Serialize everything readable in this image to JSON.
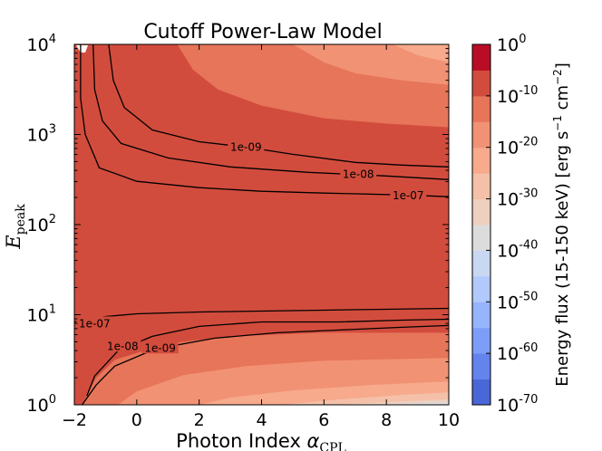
{
  "chart_data": {
    "type": "contourf",
    "title": "Cutoff Power-Law Model",
    "xlabel": "Photon Index α_CPL",
    "xlabel_main": "Photon Index ",
    "xlabel_symbol": "α",
    "xlabel_sub": "CPL",
    "ylabel": "E_peak",
    "ylabel_symbol": "E",
    "ylabel_sub": "peak",
    "xlim": [
      -2,
      10
    ],
    "ylim_log10": [
      0,
      4
    ],
    "yscale": "log",
    "x_ticks": [
      {
        "value": -2,
        "label": "−2"
      },
      {
        "value": 0,
        "label": "0"
      },
      {
        "value": 2,
        "label": "2"
      },
      {
        "value": 4,
        "label": "4"
      },
      {
        "value": 6,
        "label": "6"
      },
      {
        "value": 8,
        "label": "8"
      },
      {
        "value": 10,
        "label": "10"
      }
    ],
    "y_ticks": [
      {
        "value": 1,
        "exp": 0,
        "base": "10",
        "sup": "0"
      },
      {
        "value": 10,
        "exp": 1,
        "base": "10",
        "sup": "1"
      },
      {
        "value": 100,
        "exp": 2,
        "base": "10",
        "sup": "2"
      },
      {
        "value": 1000,
        "exp": 3,
        "base": "10",
        "sup": "3"
      },
      {
        "value": 10000,
        "exp": 4,
        "base": "10",
        "sup": "4"
      }
    ],
    "colorbar": {
      "label": "Energy flux (15-150 keV) [erg s⁻¹ cm⁻²]",
      "label_main": "Energy flux (15-150 keV) [erg s",
      "label_sup1": "−1",
      "label_mid": " cm",
      "label_sup2": "−2",
      "label_end": "]",
      "range_log10": [
        -70,
        0
      ],
      "ticks": [
        {
          "exp": 0,
          "base": "10",
          "sup": "0"
        },
        {
          "exp": -10,
          "base": "10",
          "sup": "-10"
        },
        {
          "exp": -20,
          "base": "10",
          "sup": "-20"
        },
        {
          "exp": -30,
          "base": "10",
          "sup": "-30"
        },
        {
          "exp": -40,
          "base": "10",
          "sup": "-40"
        },
        {
          "exp": -50,
          "base": "10",
          "sup": "-50"
        },
        {
          "exp": -60,
          "base": "10",
          "sup": "-60"
        },
        {
          "exp": -70,
          "base": "10",
          "sup": "-70"
        }
      ],
      "levels": [
        {
          "from": -70,
          "to": -65,
          "color": "#4a67d7"
        },
        {
          "from": -65,
          "to": -60,
          "color": "#6383ed"
        },
        {
          "from": -60,
          "to": -55,
          "color": "#7c9df8"
        },
        {
          "from": -55,
          "to": -50,
          "color": "#97b5fe"
        },
        {
          "from": -50,
          "to": -45,
          "color": "#b1c9fd"
        },
        {
          "from": -45,
          "to": -40,
          "color": "#c8d7f2"
        },
        {
          "from": -40,
          "to": -35,
          "color": "#dddcdc"
        },
        {
          "from": -35,
          "to": -30,
          "color": "#eed0c0"
        },
        {
          "from": -30,
          "to": -25,
          "color": "#f5c0a8"
        },
        {
          "from": -25,
          "to": -20,
          "color": "#f7aa8c"
        },
        {
          "from": -20,
          "to": -15,
          "color": "#f29274"
        },
        {
          "from": -15,
          "to": -10,
          "color": "#e77559"
        },
        {
          "from": -10,
          "to": -5,
          "color": "#d24c3d"
        },
        {
          "from": -5,
          "to": 0,
          "color": "#b90d26"
        }
      ]
    },
    "regions_upper": [
      {
        "level_min": -15,
        "boundary": [
          [
            1.3,
            4.0
          ],
          [
            1.8,
            3.72
          ],
          [
            2.6,
            3.5
          ],
          [
            4.0,
            3.32
          ],
          [
            6.0,
            3.18
          ],
          [
            8.0,
            3.12
          ],
          [
            10.0,
            3.08
          ]
        ]
      },
      {
        "level_min": -20,
        "boundary": [
          [
            5.0,
            4.0
          ],
          [
            6.0,
            3.8
          ],
          [
            7.0,
            3.68
          ],
          [
            8.5,
            3.6
          ],
          [
            10.0,
            3.55
          ]
        ]
      },
      {
        "level_min": -25,
        "boundary": [
          [
            8.2,
            4.0
          ],
          [
            9.0,
            3.88
          ],
          [
            10.0,
            3.8
          ]
        ]
      }
    ],
    "regions_lower": [
      {
        "level_min": -15,
        "boundary": [
          [
            -1.75,
            0.0
          ],
          [
            -1.3,
            0.3
          ],
          [
            -0.7,
            0.5
          ],
          [
            1.0,
            0.68
          ],
          [
            3.0,
            0.76
          ],
          [
            6.0,
            0.8
          ],
          [
            10.0,
            0.8
          ]
        ]
      },
      {
        "level_min": -20,
        "boundary": [
          [
            -0.6,
            0.0
          ],
          [
            0.0,
            0.15
          ],
          [
            1.5,
            0.33
          ],
          [
            3.5,
            0.43
          ],
          [
            6.0,
            0.49
          ],
          [
            10.0,
            0.52
          ]
        ]
      },
      {
        "level_min": -25,
        "boundary": [
          [
            2.0,
            0.0
          ],
          [
            3.0,
            0.08
          ],
          [
            5.0,
            0.16
          ],
          [
            7.5,
            0.22
          ],
          [
            10.0,
            0.26
          ]
        ]
      },
      {
        "level_min": -30,
        "boundary": [
          [
            4.6,
            0.0
          ],
          [
            6.5,
            0.06
          ],
          [
            8.5,
            0.11
          ],
          [
            10.0,
            0.14
          ]
        ]
      },
      {
        "level_min": -35,
        "boundary": [
          [
            6.3,
            0.0
          ],
          [
            8.0,
            0.03
          ],
          [
            10.0,
            0.06
          ]
        ]
      },
      {
        "level_min": -40,
        "boundary": [
          [
            7.8,
            0.0
          ],
          [
            9.0,
            0.02
          ],
          [
            10.0,
            0.03
          ]
        ]
      }
    ],
    "contours": [
      {
        "label": "1e-09",
        "branch": "upper",
        "points": [
          [
            -0.9,
            4.0
          ],
          [
            -0.75,
            3.6
          ],
          [
            -0.4,
            3.3
          ],
          [
            0.5,
            3.05
          ],
          [
            2.0,
            2.92
          ],
          [
            3.5,
            2.86
          ],
          [
            5.0,
            2.78
          ],
          [
            7.0,
            2.69
          ],
          [
            8.5,
            2.66
          ],
          [
            10.0,
            2.64
          ]
        ],
        "label_at": [
          3.5,
          2.86
        ]
      },
      {
        "label": "1e-08",
        "branch": "upper",
        "points": [
          [
            -1.4,
            4.0
          ],
          [
            -1.35,
            3.5
          ],
          [
            -1.1,
            3.15
          ],
          [
            -0.5,
            2.9
          ],
          [
            1.0,
            2.74
          ],
          [
            3.0,
            2.64
          ],
          [
            5.5,
            2.58
          ],
          [
            8.0,
            2.54
          ],
          [
            10.0,
            2.5
          ]
        ],
        "label_at": [
          7.1,
          2.56
        ]
      },
      {
        "label": "1e-07",
        "branch": "upper",
        "points": [
          [
            -1.8,
            4.0
          ],
          [
            -1.8,
            3.4
          ],
          [
            -1.65,
            3.0
          ],
          [
            -1.2,
            2.63
          ],
          [
            0.0,
            2.48
          ],
          [
            2.0,
            2.41
          ],
          [
            4.0,
            2.37
          ],
          [
            6.0,
            2.35
          ],
          [
            8.5,
            2.33
          ],
          [
            10.0,
            2.31
          ]
        ],
        "label_at": [
          8.7,
          2.32
        ]
      },
      {
        "label": "1e-07",
        "branch": "lower",
        "points": [
          [
            -2.0,
            0.92
          ],
          [
            -1.0,
            0.98
          ],
          [
            0.0,
            1.01
          ],
          [
            2.0,
            1.03
          ],
          [
            4.0,
            1.04
          ],
          [
            6.0,
            1.05
          ],
          [
            8.0,
            1.06
          ],
          [
            10.0,
            1.07
          ]
        ],
        "label_at": [
          -1.35,
          0.9
        ]
      },
      {
        "label": "1e-08",
        "branch": "lower",
        "points": [
          [
            -1.6,
            0.1
          ],
          [
            -1.35,
            0.32
          ],
          [
            -0.6,
            0.6
          ],
          [
            0.5,
            0.76
          ],
          [
            2.0,
            0.87
          ],
          [
            4.0,
            0.92
          ],
          [
            6.5,
            0.92
          ],
          [
            8.5,
            0.94
          ],
          [
            10.0,
            0.95
          ]
        ],
        "label_at": [
          -0.45,
          0.65
        ]
      },
      {
        "label": "1e-09",
        "branch": "lower",
        "points": [
          [
            -1.75,
            0.0
          ],
          [
            -1.3,
            0.22
          ],
          [
            -0.7,
            0.43
          ],
          [
            0.6,
            0.62
          ],
          [
            2.5,
            0.74
          ],
          [
            4.5,
            0.8
          ],
          [
            6.5,
            0.83
          ],
          [
            8.5,
            0.86
          ],
          [
            10.0,
            0.88
          ]
        ],
        "label_at": [
          0.75,
          0.63
        ]
      }
    ],
    "background_level": -10
  }
}
